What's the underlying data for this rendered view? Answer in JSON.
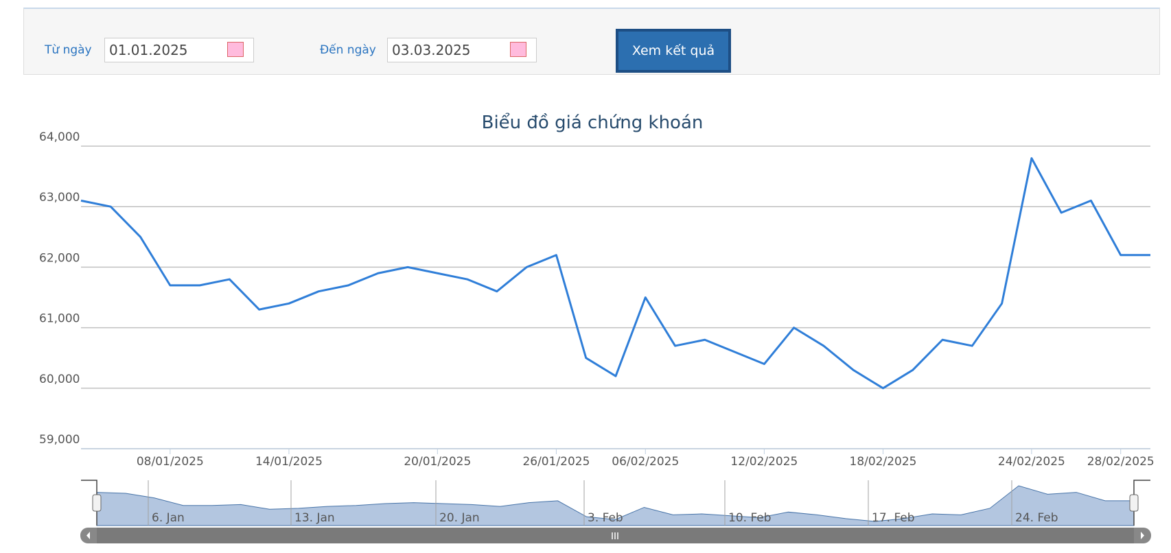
{
  "form": {
    "from_label": "Từ ngày",
    "from_value": "01.01.2025",
    "to_label": "Đến ngày",
    "to_value": "03.03.2025",
    "button": "Xem kết quả"
  },
  "chart_data": {
    "type": "line",
    "title": "Biểu đồ giá chứng khoán",
    "categories": [
      null,
      null,
      null,
      "08/01/2025",
      null,
      null,
      null,
      "14/01/2025",
      null,
      null,
      null,
      null,
      "20/01/2025",
      null,
      null,
      null,
      "26/01/2025",
      null,
      null,
      "06/02/2025",
      null,
      null,
      null,
      "12/02/2025",
      null,
      null,
      null,
      "18/02/2025",
      null,
      null,
      null,
      null,
      "24/02/2025",
      null,
      null,
      "28/02/2025",
      null
    ],
    "values": [
      63100,
      63000,
      62500,
      61700,
      61700,
      61800,
      61300,
      61400,
      61600,
      61700,
      61900,
      62000,
      61900,
      61800,
      61600,
      62000,
      62200,
      60500,
      60200,
      61500,
      60700,
      60800,
      60600,
      60400,
      61000,
      60700,
      60300,
      60000,
      60300,
      60800,
      60700,
      61400,
      63800,
      62900,
      63100,
      62200,
      62200
    ],
    "color": "#2f7ed8",
    "ylim": [
      59000,
      64000
    ],
    "yticks": [
      {
        "value": 59000,
        "label": "59,000"
      },
      {
        "value": 60000,
        "label": "60,000"
      },
      {
        "value": 61000,
        "label": "61,000"
      },
      {
        "value": 62000,
        "label": "62,000"
      },
      {
        "value": 63000,
        "label": "63,000"
      },
      {
        "value": 64000,
        "label": "64,000"
      }
    ],
    "grid": true,
    "navigator": {
      "labels": [
        "6. Jan",
        "13. Jan",
        "20. Jan",
        "3. Feb",
        "10. Feb",
        "17. Feb",
        "24. Feb"
      ]
    }
  }
}
